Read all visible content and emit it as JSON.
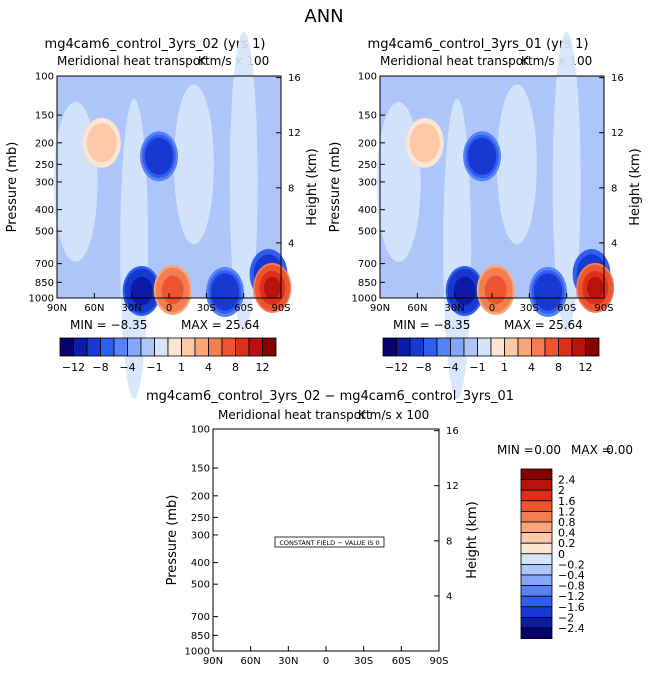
{
  "page_title": "ANN",
  "shared": {
    "pressure_ticks": [
      "100",
      "150",
      "200",
      "250",
      "300",
      "400",
      "500",
      "700",
      "850",
      "1000"
    ],
    "height_ticks": [
      "16",
      "12",
      "8",
      "4"
    ],
    "lat_ticks": [
      "90N",
      "60N",
      "30N",
      "0",
      "30S",
      "60S",
      "90S"
    ],
    "pressure_label": "Pressure (mb)",
    "height_label": "Height (km)",
    "units_label": "K m/s x 100"
  },
  "panels": [
    {
      "title": "mg4cam6_control_3yrs_02 (yrs 1)",
      "subtitle": "Meridional heat transport",
      "min_text": "MIN = −8.35",
      "max_text": "MAX = 25.64",
      "colorbar_labels": [
        "−12",
        "−8",
        "−4",
        "−1",
        "1",
        "4",
        "8",
        "12"
      ]
    },
    {
      "title": "mg4cam6_control_3yrs_01 (yrs 1)",
      "subtitle": "Meridional heat transport",
      "min_text": "MIN = −8.35",
      "max_text": "MAX = 25.64",
      "colorbar_labels": [
        "−12",
        "−8",
        "−4",
        "−1",
        "1",
        "4",
        "8",
        "12"
      ]
    }
  ],
  "diff_panel": {
    "title": "mg4cam6_control_3yrs_02 − mg4cam6_control_3yrs_01",
    "subtitle": "Meridional heat transport",
    "min_text": "MIN =",
    "min_value": "0.00",
    "max_text": "MAX =",
    "max_value": "0.00",
    "constant_note": "CONSTANT FIELD − VALUE IS 0",
    "colorbar_labels": [
      "2.4",
      "2",
      "1.6",
      "1.2",
      "0.8",
      "0.4",
      "0.2",
      "0",
      "−0.2",
      "−0.4",
      "−0.8",
      "−1.2",
      "−1.6",
      "−2",
      "−2.4"
    ]
  },
  "colors": {
    "cmap_16": [
      "#08006e",
      "#0d1aa8",
      "#1739d2",
      "#2f5ef0",
      "#5883f4",
      "#84a6f6",
      "#adc5f8",
      "#d5e4fb",
      "#fde5d3",
      "#fbc8a8",
      "#f8a67c",
      "#f37e52",
      "#ec552f",
      "#dc3018",
      "#b8120a",
      "#860000"
    ],
    "cmap_diff": [
      "#860000",
      "#b8120a",
      "#dc3018",
      "#ec552f",
      "#f37e52",
      "#f8a67c",
      "#fbc8a8",
      "#fde5d3",
      "#d5e4fb",
      "#adc5f8",
      "#84a6f6",
      "#5883f4",
      "#2f5ef0",
      "#1739d2",
      "#0d1aa8",
      "#08006e"
    ]
  },
  "chart_data": [
    {
      "type": "heatmap",
      "title": "mg4cam6_control_3yrs_02 (yrs 1)",
      "xlabel": "",
      "ylabel": "Pressure (mb)",
      "y2label": "Height (km)",
      "xlim": [
        90,
        -90
      ],
      "ylim": [
        1000,
        100
      ],
      "ylog": true,
      "x_ticks": [
        90,
        60,
        30,
        0,
        -30,
        -60,
        -90
      ],
      "y_ticks": [
        100,
        150,
        200,
        250,
        300,
        400,
        500,
        700,
        850,
        1000
      ],
      "levels": [
        -12,
        -8,
        -4,
        -1,
        1,
        4,
        8,
        12
      ],
      "min": -8.35,
      "max": 25.64,
      "features": [
        {
          "lat": 54,
          "p": 200,
          "value": 1.5
        },
        {
          "lat": 8,
          "p": 230,
          "value": -5
        },
        {
          "lat": 22,
          "p": 930,
          "value": -8
        },
        {
          "lat": -3,
          "p": 920,
          "value": 8
        },
        {
          "lat": -45,
          "p": 940,
          "value": -5
        },
        {
          "lat": -80,
          "p": 780,
          "value": -6
        },
        {
          "lat": -83,
          "p": 900,
          "value": 14
        }
      ]
    },
    {
      "type": "heatmap",
      "title": "mg4cam6_control_3yrs_01 (yrs 1)",
      "xlabel": "",
      "ylabel": "Pressure (mb)",
      "y2label": "Height (km)",
      "xlim": [
        90,
        -90
      ],
      "ylim": [
        1000,
        100
      ],
      "ylog": true,
      "x_ticks": [
        90,
        60,
        30,
        0,
        -30,
        -60,
        -90
      ],
      "y_ticks": [
        100,
        150,
        200,
        250,
        300,
        400,
        500,
        700,
        850,
        1000
      ],
      "levels": [
        -12,
        -8,
        -4,
        -1,
        1,
        4,
        8,
        12
      ],
      "min": -8.35,
      "max": 25.64,
      "features": [
        {
          "lat": 54,
          "p": 200,
          "value": 1.5
        },
        {
          "lat": 8,
          "p": 230,
          "value": -5
        },
        {
          "lat": 22,
          "p": 930,
          "value": -8
        },
        {
          "lat": -3,
          "p": 920,
          "value": 8
        },
        {
          "lat": -45,
          "p": 940,
          "value": -5
        },
        {
          "lat": -80,
          "p": 780,
          "value": -6
        },
        {
          "lat": -83,
          "p": 900,
          "value": 14
        }
      ]
    },
    {
      "type": "heatmap",
      "title": "mg4cam6_control_3yrs_02 − mg4cam6_control_3yrs_01",
      "ylabel": "Pressure (mb)",
      "y2label": "Height (km)",
      "xlim": [
        90,
        -90
      ],
      "ylim": [
        1000,
        100
      ],
      "ylog": true,
      "levels": [
        -2.4,
        -2,
        -1.6,
        -1.2,
        -0.8,
        -0.4,
        -0.2,
        0,
        0.2,
        0.4,
        0.8,
        1.2,
        1.6,
        2,
        2.4
      ],
      "min": 0.0,
      "max": 0.0,
      "constant_value": 0
    }
  ]
}
